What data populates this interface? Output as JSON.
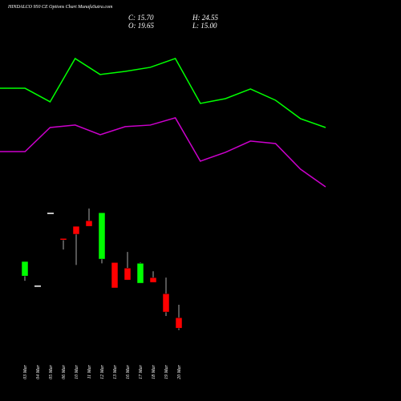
{
  "chart_data": [
    {
      "type": "line",
      "categories": [
        null,
        null,
        null,
        null,
        null,
        null,
        null,
        null,
        null,
        null,
        null,
        null,
        null,
        null
      ],
      "ylim": [
        0,
        100
      ],
      "series": [
        {
          "color": "#00ff00",
          "values": [
            72.2,
            72.2,
            62.8,
            92.8,
            81.7,
            83.9,
            86.7,
            92.8,
            61.7,
            65,
            71.7,
            63.9,
            51.1,
            45
          ]
        },
        {
          "color": "#cc00cc",
          "values": [
            28.3,
            28.3,
            45,
            46.7,
            40,
            45.6,
            46.7,
            51.7,
            21.7,
            27.8,
            35.6,
            33.9,
            16.1,
            3.9
          ]
        }
      ]
    },
    {
      "type": "candlestick",
      "title": "HINDALCO 950 CE Options Chart MunafaSutra.com",
      "close_label": "C: 15.70",
      "high_label": "H: 24.55",
      "open_label": "O: 19.65",
      "low_label": "L: 15.00",
      "categories": [
        "03 Mar",
        "04 Mar",
        "05 Mar",
        "06 Mar",
        "10 Mar",
        "11 Mar",
        "12 Mar",
        "13 Mar",
        "16 Mar",
        "17 Mar",
        "18 Mar",
        "19 Mar",
        "20 Mar"
      ],
      "open": [
        35.4,
        31.8,
        59.3,
        49.6,
        54.2,
        56.3,
        41.8,
        40.5,
        38.4,
        32.7,
        34.8,
        28.7,
        19.65
      ],
      "high": [
        40.9,
        31.8,
        59.3,
        49.6,
        54.2,
        60.9,
        59.3,
        40.5,
        44.5,
        40.5,
        37.2,
        34.8,
        24.55
      ],
      "low": [
        33.6,
        31.8,
        59.3,
        45.4,
        39.6,
        54.2,
        40.2,
        30.9,
        33.9,
        32.7,
        33.0,
        20.3,
        15.0
      ],
      "close": [
        40.9,
        31.8,
        59.3,
        49.0,
        51.2,
        54.2,
        59.3,
        30.9,
        33.9,
        40.2,
        33.0,
        21.8,
        15.7
      ],
      "ylim": [
        0,
        70
      ],
      "up_color": "#00ff00",
      "down_color": "#ff0000",
      "doji_color": "#ffffff"
    }
  ]
}
